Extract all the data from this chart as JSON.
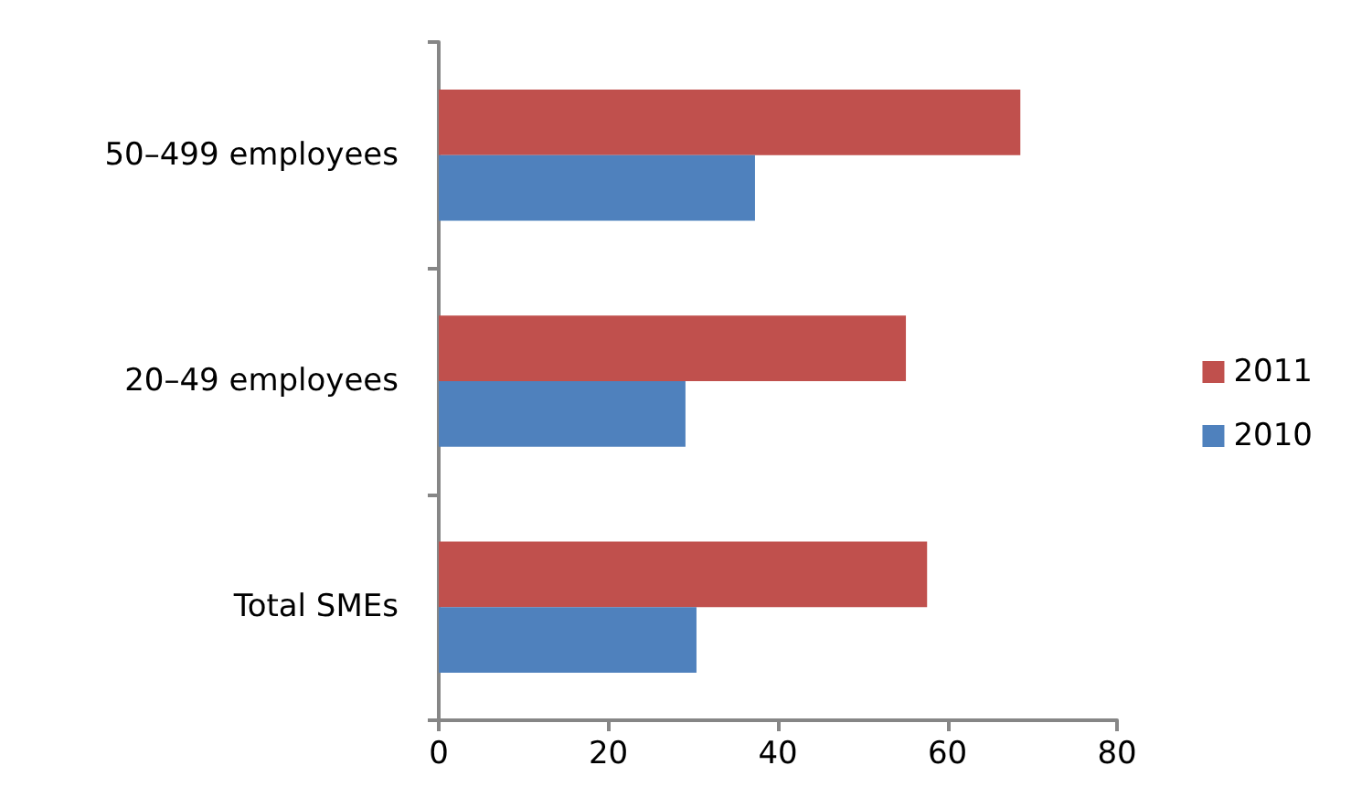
{
  "chart_data": {
    "type": "bar",
    "orientation": "horizontal",
    "categories": [
      "50–499 employees",
      "20–49 employees",
      "Total SMEs"
    ],
    "series": [
      {
        "name": "2011",
        "color": "#c0504d",
        "values": [
          68.6,
          55.1,
          57.6
        ]
      },
      {
        "name": "2010",
        "color": "#4f81bd",
        "values": [
          37.3,
          29.1,
          30.4
        ]
      }
    ],
    "xlim": [
      0,
      80
    ],
    "xticks": [
      0,
      20,
      40,
      60,
      80
    ],
    "grid": false,
    "legend": "right"
  }
}
